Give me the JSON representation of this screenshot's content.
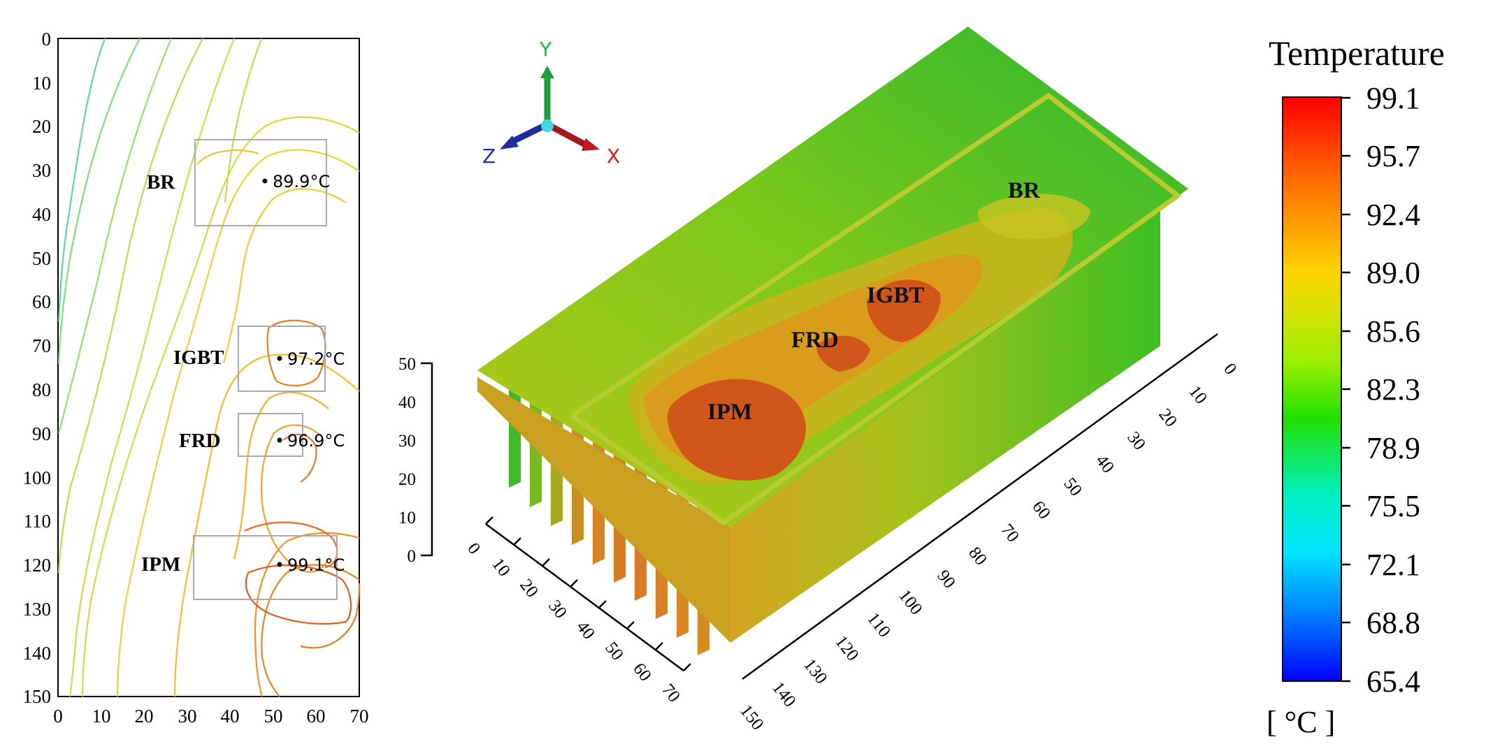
{
  "contour_plot": {
    "y_ticks": [
      "0",
      "10",
      "20",
      "30",
      "40",
      "50",
      "60",
      "70",
      "80",
      "90",
      "100",
      "110",
      "120",
      "130",
      "140",
      "150"
    ],
    "x_ticks": [
      "0",
      "10",
      "20",
      "30",
      "40",
      "50",
      "60",
      "70"
    ],
    "components": [
      {
        "label": "BR",
        "temp": "89.9°C"
      },
      {
        "label": "IGBT",
        "temp": "97.2°C"
      },
      {
        "label": "FRD",
        "temp": "96.9°C"
      },
      {
        "label": "IPM",
        "temp": "99.1°C"
      }
    ]
  },
  "model_3d": {
    "axes": {
      "x": "X",
      "y": "Y",
      "z": "Z"
    },
    "height_ticks": [
      "50",
      "40",
      "30",
      "20",
      "10",
      "0"
    ],
    "width_ticks": [
      "0",
      "10",
      "20",
      "30",
      "40",
      "50",
      "60",
      "70"
    ],
    "length_ticks": [
      "0",
      "10",
      "20",
      "30",
      "40",
      "50",
      "60",
      "70",
      "80",
      "90",
      "100",
      "110",
      "120",
      "130",
      "140",
      "150"
    ],
    "labels": {
      "br": "BR",
      "igbt": "IGBT",
      "frd": "FRD",
      "ipm": "IPM"
    }
  },
  "colorbar": {
    "title": "Temperature",
    "unit": "[ °C ]",
    "ticks": [
      "99.1",
      "95.7",
      "92.4",
      "89.0",
      "85.6",
      "82.3",
      "78.9",
      "75.5",
      "72.1",
      "68.8",
      "65.4"
    ]
  }
}
